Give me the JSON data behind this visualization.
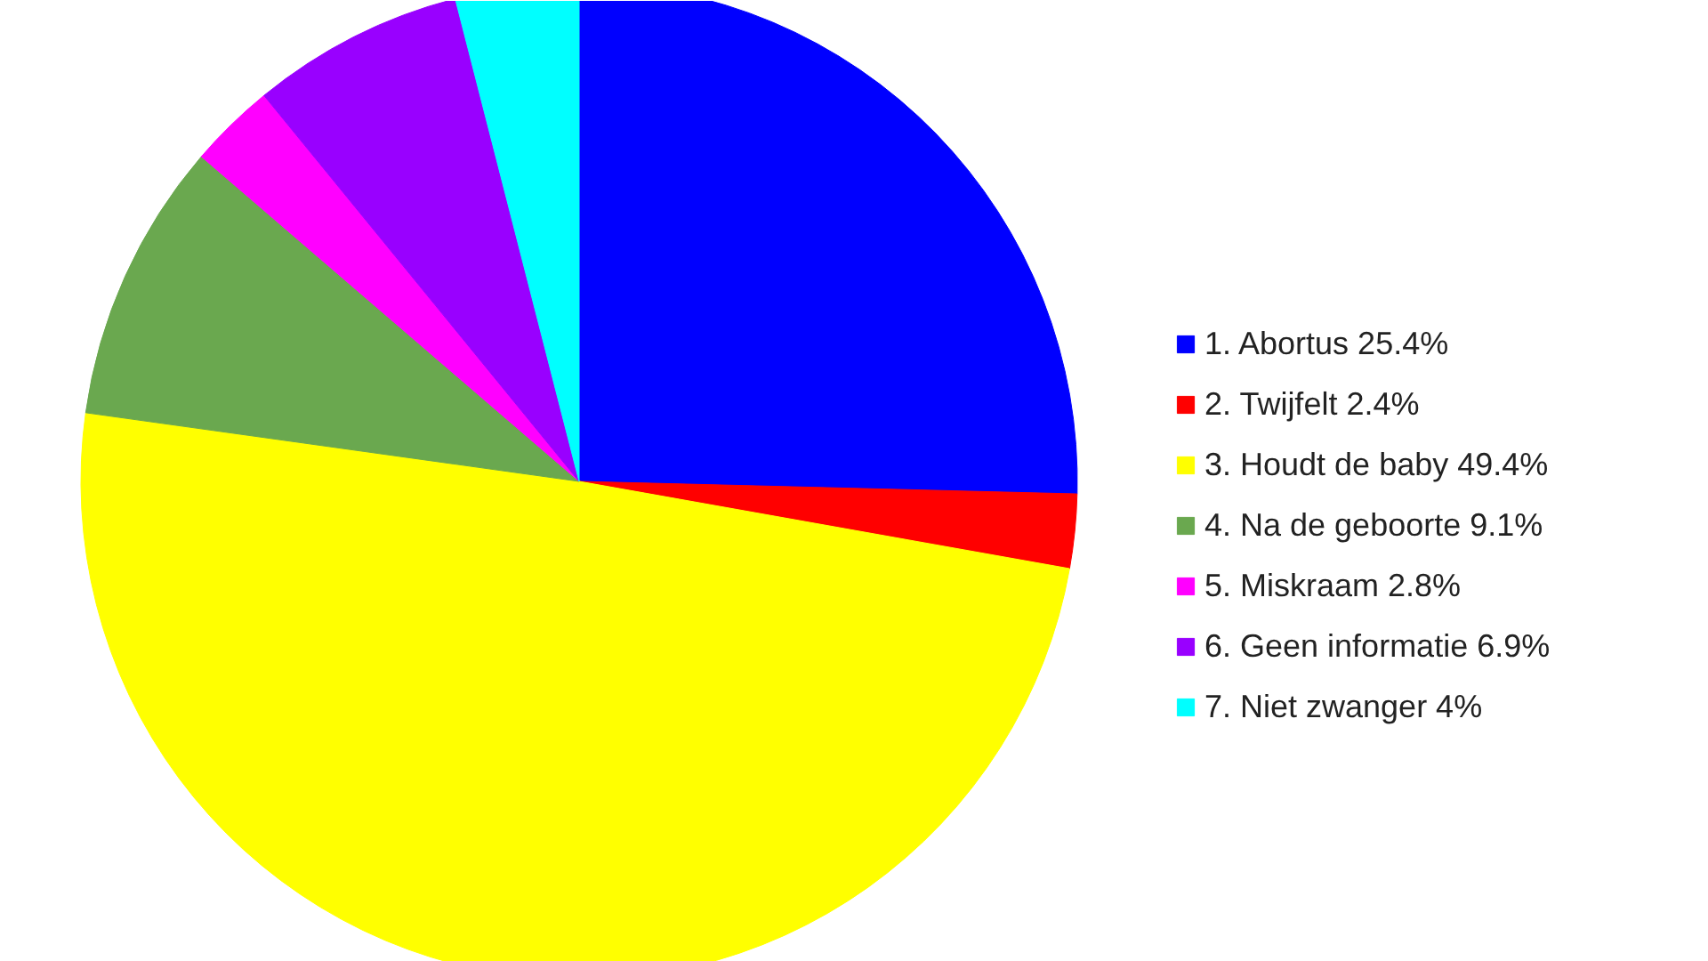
{
  "chart_data": {
    "type": "pie",
    "categories": [
      "1. Abortus 25.4%",
      "2. Twijfelt 2.4%",
      "3. Houdt de baby 49.4%",
      "4. Na de geboorte 9.1%",
      "5. Miskraam 2.8%",
      "6. Geen informatie 6.9%",
      "7. Niet zwanger 4%"
    ],
    "values": [
      25.4,
      2.4,
      49.4,
      9.1,
      2.8,
      6.9,
      4
    ],
    "colors": [
      "#0000ff",
      "#ff0000",
      "#ffff00",
      "#6aa84f",
      "#ff00ff",
      "#9900ff",
      "#00ffff"
    ],
    "legend": "right"
  }
}
